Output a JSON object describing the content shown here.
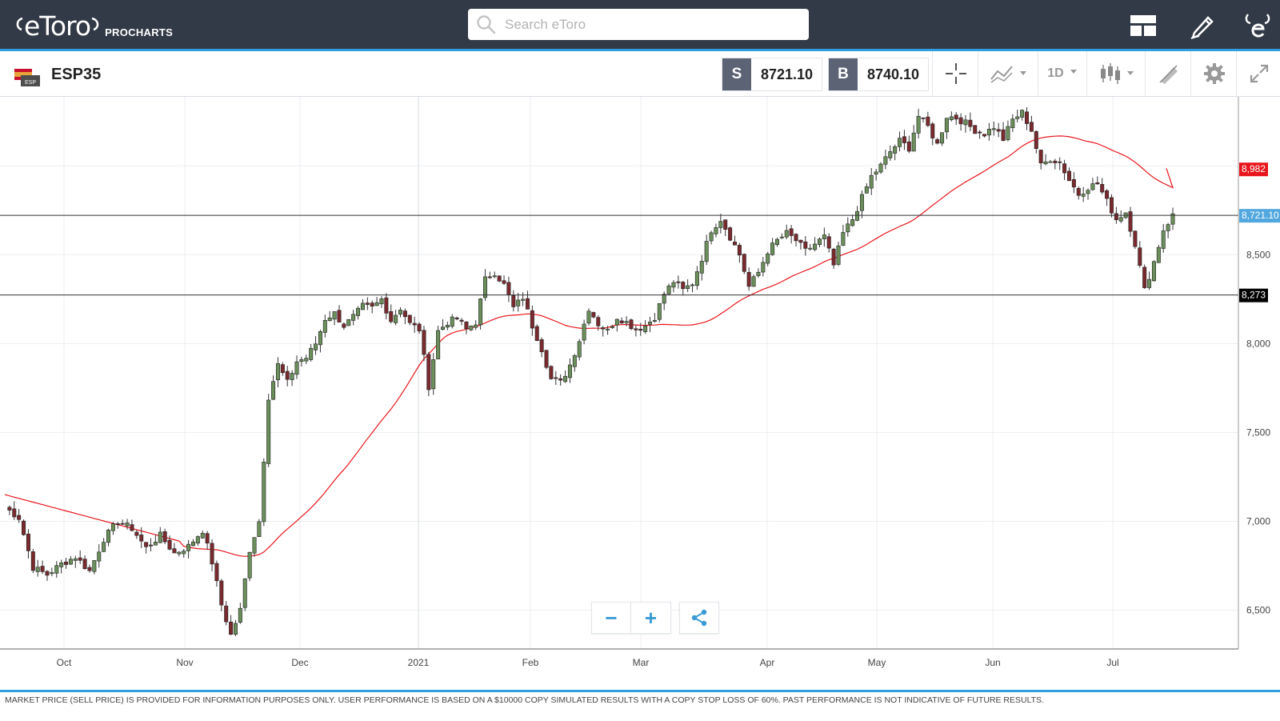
{
  "app": {
    "logo_text": "eToro",
    "product_label": "PROCHARTS"
  },
  "search": {
    "placeholder": "Search eToro"
  },
  "instrument": {
    "symbol": "ESP35",
    "flag_label": "ESP",
    "sell_tag": "S",
    "sell_price": "8721.10",
    "buy_tag": "B",
    "buy_price": "8740.10"
  },
  "toolbar": {
    "timeframe": "1D",
    "icons": [
      "crosshair-icon",
      "compare-icon",
      "candlestick-type-icon",
      "draw-tools-icon",
      "settings-icon",
      "fullscreen-icon"
    ]
  },
  "chart_data": {
    "type": "candlestick",
    "price_axis_ticks": [
      "6,500",
      "7,000",
      "7,500",
      "8,000",
      "8,500"
    ],
    "time_axis_ticks": [
      "Oct",
      "Nov",
      "Dec",
      "2021",
      "Feb",
      "Mar",
      "Apr",
      "May",
      "Jun",
      "Jul"
    ],
    "ylim": [
      6250,
      9380
    ],
    "grid": true,
    "price_tags": [
      {
        "value": 8982,
        "label": "8,982",
        "color": "#e8161c"
      },
      {
        "value": 8721.1,
        "label": "8,721.10",
        "color": "#52a8de"
      },
      {
        "value": 8273,
        "label": "8,273",
        "color": "#000000"
      }
    ],
    "horizontal_lines": [
      8721.1,
      8273
    ],
    "moving_average_color": "#e8161c",
    "up_color": "#6b8f5a",
    "down_color": "#7a2a2e"
  },
  "footer": {
    "disclaimer": "MARKET PRICE (SELL PRICE) IS PROVIDED FOR INFORMATION PURPOSES ONLY. USER PERFORMANCE IS BASED ON A $10000 COPY SIMULATED RESULTS WITH A COPY STOP LOSS OF 60%. PAST PERFORMANCE IS NOT INDICATIVE OF FUTURE RESULTS."
  },
  "zoom_controls": {
    "minus": "−",
    "plus": "+"
  }
}
